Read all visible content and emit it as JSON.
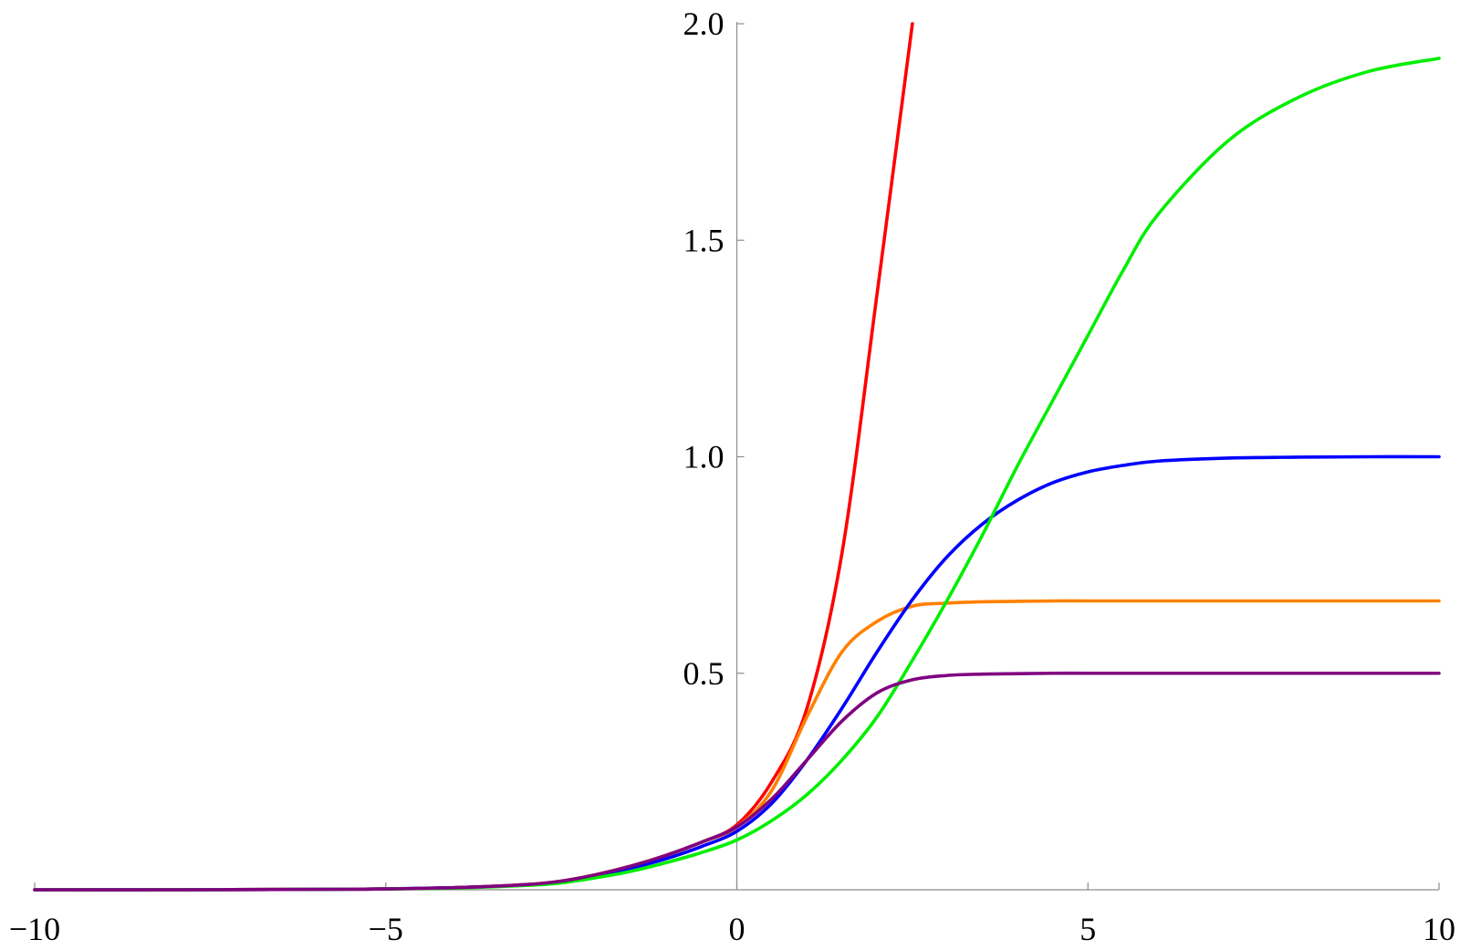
{
  "chart_data": {
    "type": "line",
    "title": "",
    "xlabel": "",
    "ylabel": "",
    "xlim": [
      -10,
      10
    ],
    "ylim": [
      0,
      2
    ],
    "x_ticks": [
      -10,
      -5,
      0,
      5,
      10
    ],
    "x_tick_labels": [
      "−10",
      "−5",
      "0",
      "5",
      "10"
    ],
    "y_ticks": [
      0.5,
      1.0,
      1.5,
      2.0
    ],
    "y_tick_labels": [
      "0.5",
      "1.0",
      "1.5",
      "2.0"
    ],
    "grid": false,
    "legend": "none",
    "x": [
      -10,
      -8,
      -6,
      -5,
      -4,
      -3,
      -2.5,
      -2,
      -1.5,
      -1,
      -0.5,
      0,
      0.5,
      1,
      1.5,
      2,
      2.5,
      3,
      3.5,
      4,
      4.5,
      5,
      5.5,
      6,
      7,
      8,
      9,
      10
    ],
    "series": [
      {
        "color": "#ff0000",
        "values": [
          0.0,
          0.0,
          0.001,
          0.002,
          0.005,
          0.012,
          0.02,
          0.035,
          0.055,
          0.08,
          0.11,
          0.15,
          0.25,
          0.42,
          0.78,
          1.38,
          2.0,
          null,
          null,
          null,
          null,
          null,
          null,
          null,
          null,
          null,
          null,
          null
        ]
      },
      {
        "color": "#ff8000",
        "values": [
          0.0,
          0.0,
          0.001,
          0.002,
          0.005,
          0.012,
          0.02,
          0.035,
          0.055,
          0.08,
          0.11,
          0.145,
          0.23,
          0.4,
          0.55,
          0.62,
          0.655,
          0.662,
          0.665,
          0.666,
          0.667,
          0.667,
          0.667,
          0.667,
          0.667,
          0.667,
          0.667,
          0.667
        ]
      },
      {
        "color": "#0000ff",
        "values": [
          0.0,
          0.0,
          0.001,
          0.002,
          0.005,
          0.011,
          0.018,
          0.032,
          0.05,
          0.072,
          0.1,
          0.135,
          0.2,
          0.3,
          0.42,
          0.55,
          0.67,
          0.77,
          0.845,
          0.9,
          0.94,
          0.965,
          0.98,
          0.99,
          0.997,
          0.999,
          1.0,
          1.0
        ]
      },
      {
        "color": "#00ee00",
        "values": [
          0.0,
          0.0,
          0.001,
          0.002,
          0.004,
          0.01,
          0.016,
          0.028,
          0.043,
          0.063,
          0.086,
          0.115,
          0.16,
          0.22,
          0.3,
          0.4,
          0.53,
          0.67,
          0.82,
          0.98,
          1.13,
          1.28,
          1.43,
          1.56,
          1.73,
          1.83,
          1.89,
          1.92
        ]
      },
      {
        "color": "#800080",
        "values": [
          0.0,
          0.0,
          0.001,
          0.002,
          0.005,
          0.012,
          0.02,
          0.035,
          0.055,
          0.08,
          0.11,
          0.145,
          0.21,
          0.3,
          0.39,
          0.455,
          0.485,
          0.495,
          0.498,
          0.499,
          0.5,
          0.5,
          0.5,
          0.5,
          0.5,
          0.5,
          0.5,
          0.5
        ]
      }
    ]
  }
}
